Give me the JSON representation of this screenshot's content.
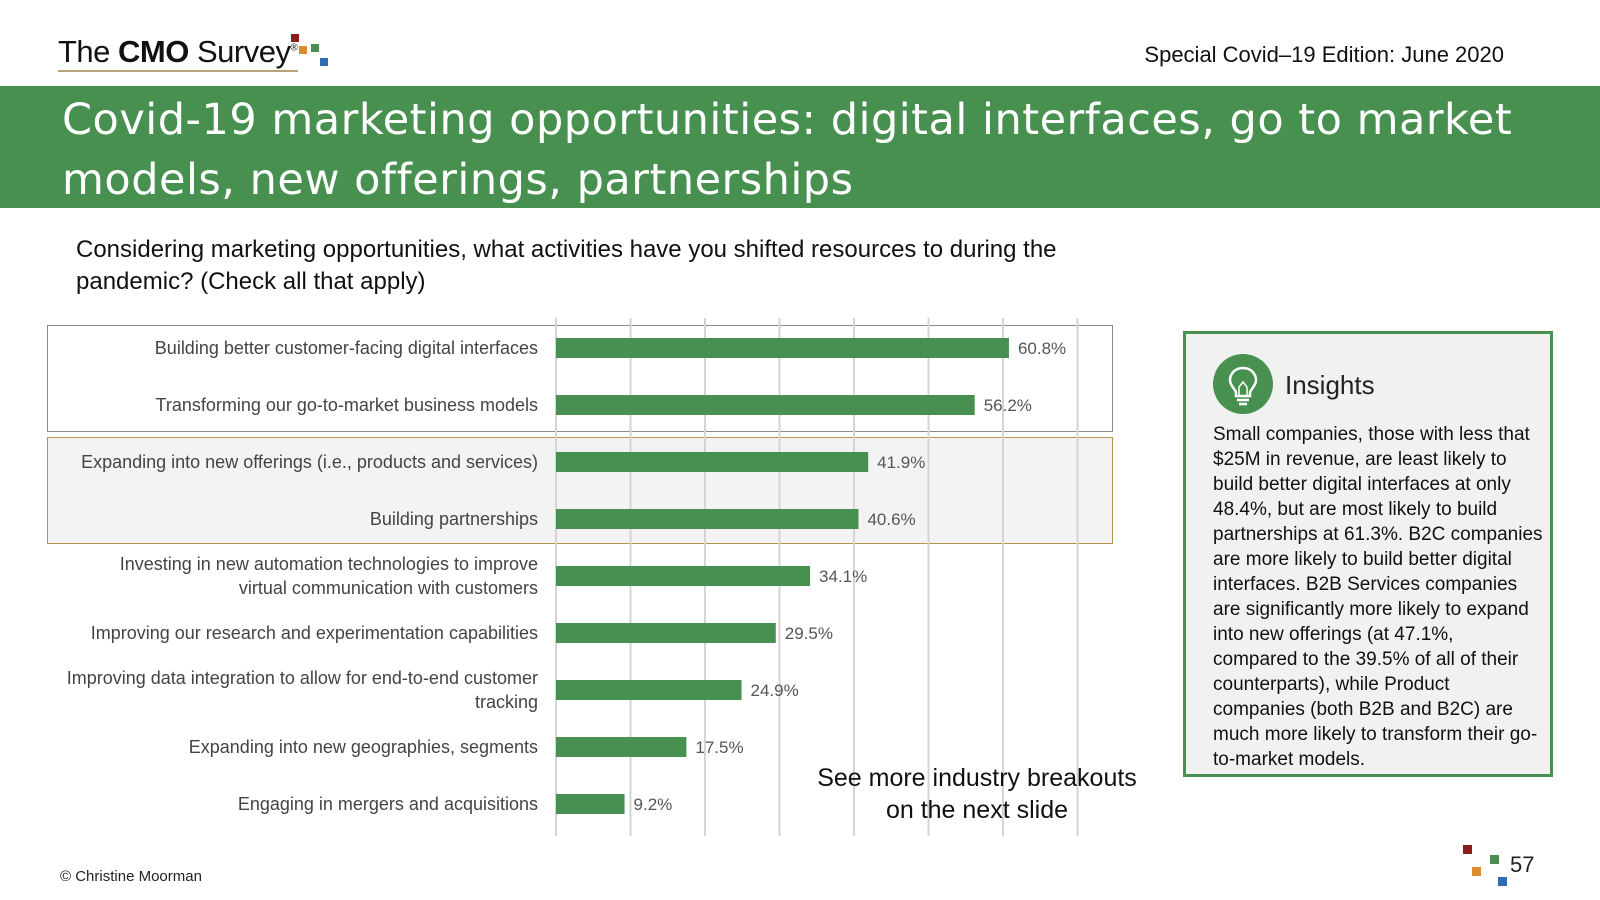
{
  "header": {
    "logo_prefix": "The ",
    "logo_bold": "CMO",
    "logo_suffix": " Survey",
    "logo_mark": "®",
    "edition": "Special Covid–19 Edition: June 2020"
  },
  "title": "Covid-19 marketing opportunities: digital interfaces, go to market models, new offerings, partnerships",
  "question": "Considering marketing opportunities, what activities have you shifted resources to during the pandemic? (Check all that apply)",
  "chart_data": {
    "type": "bar",
    "orientation": "horizontal",
    "categories": [
      "Building better customer-facing digital interfaces",
      "Transforming our go-to-market business models",
      "Expanding into new offerings (i.e., products and services)",
      "Building partnerships",
      "Investing in new automation technologies to improve virtual communication with customers",
      "Improving our research and experimentation capabilities",
      "Improving data integration to allow for end-to-end customer tracking",
      "Expanding into new geographies, segments",
      "Engaging in mergers and acquisitions"
    ],
    "category_lines": [
      [
        "Building better customer-facing digital interfaces"
      ],
      [
        "Transforming our go-to-market business models"
      ],
      [
        "Expanding into new offerings (i.e., products and services)"
      ],
      [
        "Building partnerships"
      ],
      [
        "Investing in new automation technologies to improve",
        "virtual communication with customers"
      ],
      [
        "Improving our research and experimentation capabilities"
      ],
      [
        "Improving data integration to allow for end-to-end customer",
        "tracking"
      ],
      [
        "Expanding into new geographies, segments"
      ],
      [
        "Engaging in mergers and acquisitions"
      ]
    ],
    "values": [
      60.8,
      56.2,
      41.9,
      40.6,
      34.1,
      29.5,
      24.9,
      17.5,
      9.2
    ],
    "data_labels": [
      "60.8%",
      "56.2%",
      "41.9%",
      "40.6%",
      "34.1%",
      "29.5%",
      "24.9%",
      "17.5%",
      "9.2%"
    ],
    "xlim": [
      0,
      70
    ],
    "grid": true,
    "bar_color": "#47904f"
  },
  "note": "See more industry breakouts on the next slide",
  "insights": {
    "title": "Insights",
    "body": "Small companies, those with less that $25M in revenue, are least likely to build better digital interfaces at only 48.4%, but are most likely to build partnerships at 61.3%. B2C companies are more likely to build better digital interfaces. B2B Services companies are significantly more likely to expand into new offerings (at 47.1%, compared to the 39.5% of all of their counterparts), while Product companies (both B2B and B2C) are much more likely to transform their go-to-market models."
  },
  "footer": {
    "copyright": "© Christine Moorman",
    "page": "57"
  },
  "colors": {
    "brand_green": "#47904f",
    "square_red": "#8b1c1c",
    "square_orange": "#e08a2e",
    "square_green": "#47904f",
    "square_blue": "#2e6db4"
  }
}
